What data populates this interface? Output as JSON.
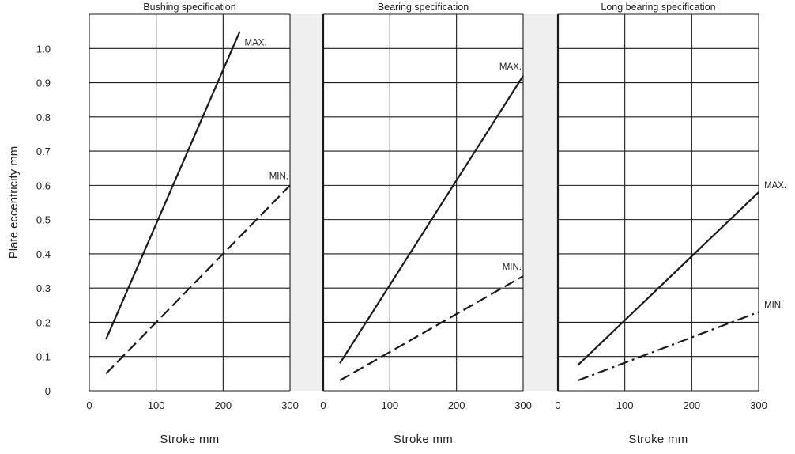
{
  "colors": {
    "background": "#ffffff",
    "plot_background": "#efefef",
    "grid": "#1a1a1a",
    "line": "#1a1a1a",
    "text": "#222222"
  },
  "chart_data": [
    {
      "type": "line",
      "title": "Bushing specification",
      "xlabel": "Stroke  mm",
      "ylabel": "Plate eccentricity  mm",
      "xlim": [
        0,
        300
      ],
      "ylim": [
        0,
        1.0
      ],
      "xticks": [
        "0",
        "100",
        "200",
        "300"
      ],
      "yticks": [
        "0",
        "0.1",
        "0.2",
        "0.3",
        "0.4",
        "0.5",
        "0.6",
        "0.7",
        "0.8",
        "0.9",
        "1.0"
      ],
      "grid": true,
      "series": [
        {
          "name": "MAX.",
          "style": "solid",
          "x": [
            25,
            225
          ],
          "y": [
            0.15,
            1.05
          ]
        },
        {
          "name": "MIN.",
          "style": "dashed",
          "x": [
            25,
            300
          ],
          "y": [
            0.05,
            0.6
          ]
        }
      ]
    },
    {
      "type": "line",
      "title": "Bearing specification",
      "xlabel": "Stroke  mm",
      "xlim": [
        0,
        300
      ],
      "ylim": [
        0,
        1.0
      ],
      "xticks": [
        "0",
        "100",
        "200",
        "300"
      ],
      "grid": true,
      "series": [
        {
          "name": "MAX.",
          "style": "solid",
          "x": [
            25,
            300
          ],
          "y": [
            0.08,
            0.92
          ]
        },
        {
          "name": "MIN.",
          "style": "dashed",
          "x": [
            25,
            300
          ],
          "y": [
            0.03,
            0.335
          ]
        }
      ]
    },
    {
      "type": "line",
      "title": "Long bearing specification",
      "xlabel": "Stroke  mm",
      "xlim": [
        0,
        300
      ],
      "ylim": [
        0,
        1.0
      ],
      "xticks": [
        "0",
        "100",
        "200",
        "300"
      ],
      "grid": true,
      "series": [
        {
          "name": "MAX.",
          "style": "solid",
          "x": [
            30,
            300
          ],
          "y": [
            0.075,
            0.58
          ]
        },
        {
          "name": "MIN.",
          "style": "dash-dot",
          "x": [
            30,
            300
          ],
          "y": [
            0.03,
            0.23
          ]
        }
      ]
    }
  ]
}
